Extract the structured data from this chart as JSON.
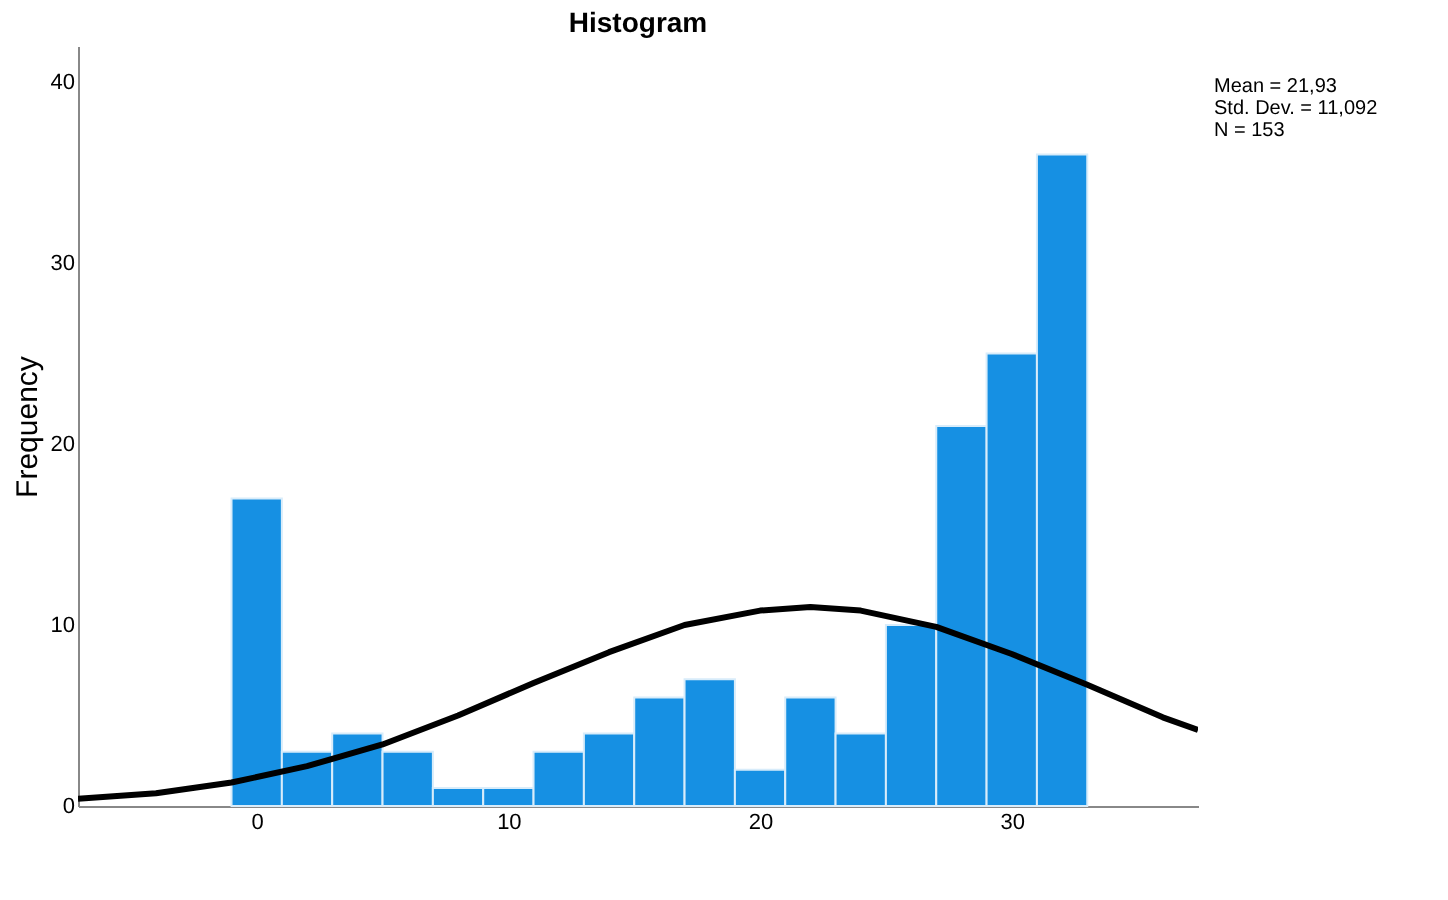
{
  "chart_data": {
    "type": "histogram",
    "title": "Histogram",
    "ylabel": "Frequency",
    "bins": [
      -1,
      1,
      3,
      5,
      7,
      9,
      11,
      13,
      15,
      17,
      19,
      21,
      23,
      25,
      27,
      29,
      31,
      33
    ],
    "values": [
      17,
      3,
      4,
      3,
      1,
      1,
      3,
      4,
      6,
      7,
      2,
      6,
      4,
      10,
      21,
      25,
      36
    ],
    "color": "#1690e3",
    "series": [
      {
        "type": "line",
        "color": "#000000",
        "line_style": "solid",
        "x": [
          -7.1,
          -4,
          -1,
          2,
          5,
          8,
          11,
          14,
          17,
          20,
          22,
          24,
          27,
          30,
          33,
          36,
          37.4
        ],
        "values": [
          0.4,
          0.7,
          1.3,
          2.2,
          3.4,
          5.0,
          6.8,
          8.5,
          10.0,
          10.8,
          11.0,
          10.8,
          9.9,
          8.4,
          6.7,
          4.9,
          4.2
        ]
      }
    ],
    "xlim": [
      -7.1,
      37.4
    ],
    "xticks": [
      0,
      10,
      20,
      30
    ],
    "ylim": [
      0,
      42
    ],
    "yticks": [
      0,
      10,
      20,
      30,
      40
    ],
    "grid": false,
    "annotations": [
      "Mean = 21,93",
      "Std. Dev. = 11,092",
      "N = 153"
    ]
  }
}
